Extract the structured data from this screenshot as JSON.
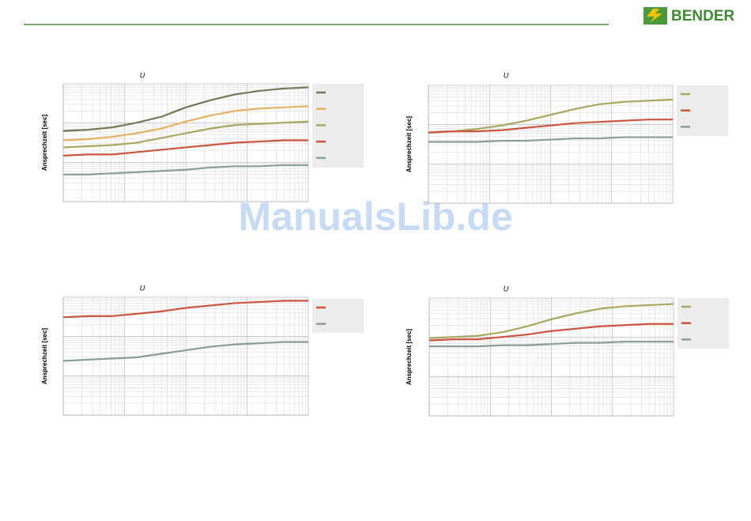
{
  "header": {
    "brand": "BENDER"
  },
  "watermark": "ManualsLib.de",
  "chart_data": [
    {
      "type": "line",
      "title": "U",
      "y_label": "Ansprechzeit [sec]",
      "x": [
        0,
        1,
        2,
        3,
        4,
        5,
        6,
        7,
        8,
        9,
        10
      ],
      "xlim": [
        0,
        10
      ],
      "ylim": [
        0,
        100
      ],
      "log_grid": true,
      "series": [
        {
          "color": "#707a58",
          "values": [
            60,
            61,
            63,
            67,
            72,
            80,
            86,
            91,
            94,
            96,
            97
          ]
        },
        {
          "color": "#e8b060",
          "values": [
            52,
            53,
            55,
            58,
            62,
            68,
            73,
            77,
            79,
            80,
            81
          ]
        },
        {
          "color": "#a8a860",
          "values": [
            46,
            47,
            48,
            50,
            54,
            58,
            62,
            65,
            66,
            67,
            68
          ]
        },
        {
          "color": "#cc5540",
          "values": [
            39,
            40,
            40,
            42,
            44,
            46,
            48,
            50,
            51,
            52,
            52
          ]
        },
        {
          "color": "#8a9e98",
          "values": [
            23,
            23,
            24,
            25,
            26,
            27,
            29,
            30,
            30,
            31,
            31
          ]
        }
      ]
    },
    {
      "type": "line",
      "title": "U",
      "y_label": "Ansprechzeit [sec]",
      "x": [
        0,
        1,
        2,
        3,
        4,
        5,
        6,
        7,
        8,
        9,
        10
      ],
      "xlim": [
        0,
        10
      ],
      "ylim": [
        0,
        100
      ],
      "log_grid": true,
      "series": [
        {
          "color": "#a8a860",
          "values": [
            60,
            61,
            63,
            66,
            70,
            75,
            80,
            84,
            86,
            87,
            88
          ]
        },
        {
          "color": "#cc5540",
          "values": [
            60,
            61,
            61,
            62,
            64,
            66,
            68,
            69,
            70,
            71,
            71
          ]
        },
        {
          "color": "#8a9e98",
          "values": [
            52,
            52,
            52,
            53,
            53,
            54,
            55,
            55,
            56,
            56,
            56
          ]
        }
      ]
    },
    {
      "type": "line",
      "title": "U",
      "y_label": "Ansprechzeit [sec]",
      "x": [
        0,
        1,
        2,
        3,
        4,
        5,
        6,
        7,
        8,
        9,
        10
      ],
      "xlim": [
        0,
        10
      ],
      "ylim": [
        0,
        100
      ],
      "log_grid": true,
      "series": [
        {
          "color": "#cc5540",
          "values": [
            83,
            84,
            84,
            86,
            88,
            91,
            93,
            95,
            96,
            97,
            97
          ]
        },
        {
          "color": "#8a9e98",
          "values": [
            46,
            47,
            48,
            49,
            52,
            55,
            58,
            60,
            61,
            62,
            62
          ]
        }
      ]
    },
    {
      "type": "line",
      "title": "U",
      "y_label": "Ansprechzeit [sec]",
      "x": [
        0,
        1,
        2,
        3,
        4,
        5,
        6,
        7,
        8,
        9,
        10
      ],
      "xlim": [
        0,
        10
      ],
      "ylim": [
        0,
        100
      ],
      "log_grid": true,
      "series": [
        {
          "color": "#a8a860",
          "values": [
            66,
            67,
            68,
            71,
            76,
            82,
            87,
            91,
            93,
            94,
            95
          ]
        },
        {
          "color": "#cc5540",
          "values": [
            64,
            65,
            65,
            67,
            69,
            72,
            74,
            76,
            77,
            78,
            78
          ]
        },
        {
          "color": "#8a9e98",
          "values": [
            59,
            59,
            59,
            60,
            60,
            61,
            62,
            62,
            63,
            63,
            63
          ]
        }
      ]
    }
  ]
}
